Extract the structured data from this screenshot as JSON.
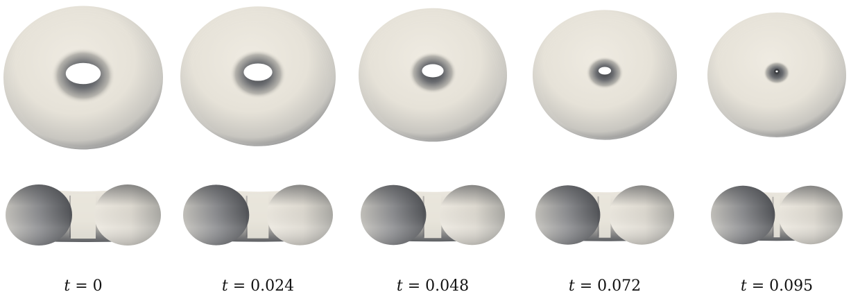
{
  "frames": [
    {
      "t_label": "t",
      "t_value": "0",
      "hole": 1.0
    },
    {
      "t_label": "t",
      "t_value": "0.024",
      "hole": 0.82
    },
    {
      "t_label": "t",
      "t_value": "0.048",
      "hole": 0.62
    },
    {
      "t_label": "t",
      "t_value": "0.072",
      "hole": 0.36
    },
    {
      "t_label": "t",
      "t_value": "0.095",
      "hole": 0.1
    }
  ],
  "colors": {
    "surface_light": "#ece8df",
    "surface_mid": "#b9b7b1",
    "surface_dark": "#5d5f63",
    "hole_dark": "#3e4044"
  }
}
